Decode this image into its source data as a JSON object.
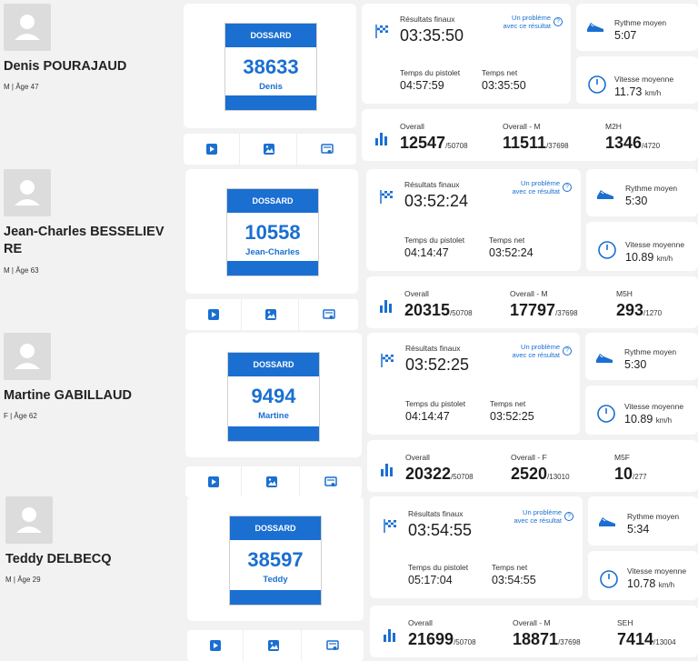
{
  "colors": {
    "accent": "#1a6fd1",
    "card": "#ffffff",
    "page": "#f2f2f2"
  },
  "labels": {
    "bib": "DOSSARD",
    "final_results": "Résultats finaux",
    "problem_line1": "Un problème",
    "problem_line2": "avec ce résultat",
    "help_icon_glyph": "?",
    "gun_time": "Temps du pistolet",
    "net_time": "Temps net",
    "avg_pace": "Rythme moyen",
    "avg_speed": "Vitesse moyenne",
    "speed_unit": "km/h",
    "overall": "Overall"
  },
  "icons": [
    "avatar-placeholder-icon",
    "checkered-flag-icon",
    "help-circle-icon",
    "running-shoe-icon",
    "speedometer-icon",
    "bar-chart-icon",
    "video-play-icon",
    "photo-icon",
    "certificate-icon"
  ],
  "runners": [
    {
      "name": "Denis POURAJAUD",
      "meta": "M | Âge 47",
      "bib_number": "38633",
      "bib_name": "Denis",
      "final_time": "03:35:50",
      "gun_time": "04:57:59",
      "net_time": "03:35:50",
      "pace": "5:07",
      "speed": "11.73",
      "overall_rank": "12547",
      "overall_total": "/50708",
      "gender_label": "Overall - M",
      "gender_rank": "11511",
      "gender_total": "/37698",
      "category_label": "M2H",
      "category_rank": "1346",
      "category_total": "/4720"
    },
    {
      "name": "Jean-Charles BESSELIEVRE",
      "meta": "M | Âge 63",
      "bib_number": "10558",
      "bib_name": "Jean-Charles",
      "final_time": "03:52:24",
      "gun_time": "04:14:47",
      "net_time": "03:52:24",
      "pace": "5:30",
      "speed": "10.89",
      "overall_rank": "20315",
      "overall_total": "/50708",
      "gender_label": "Overall - M",
      "gender_rank": "17797",
      "gender_total": "/37698",
      "category_label": "M5H",
      "category_rank": "293",
      "category_total": "/1270"
    },
    {
      "name": "Martine GABILLAUD",
      "meta": "F | Âge 62",
      "bib_number": "9494",
      "bib_name": "Martine",
      "final_time": "03:52:25",
      "gun_time": "04:14:47",
      "net_time": "03:52:25",
      "pace": "5:30",
      "speed": "10.89",
      "overall_rank": "20322",
      "overall_total": "/50708",
      "gender_label": "Overall - F",
      "gender_rank": "2520",
      "gender_total": "/13010",
      "category_label": "M5F",
      "category_rank": "10",
      "category_total": "/277"
    },
    {
      "name": "Teddy DELBECQ",
      "meta": "M | Âge 29",
      "bib_number": "38597",
      "bib_name": "Teddy",
      "final_time": "03:54:55",
      "gun_time": "05:17:04",
      "net_time": "03:54:55",
      "pace": "5:34",
      "speed": "10.78",
      "overall_rank": "21699",
      "overall_total": "/50708",
      "gender_label": "Overall - M",
      "gender_rank": "18871",
      "gender_total": "/37698",
      "category_label": "SEH",
      "category_rank": "7414",
      "category_total": "/13004"
    }
  ]
}
